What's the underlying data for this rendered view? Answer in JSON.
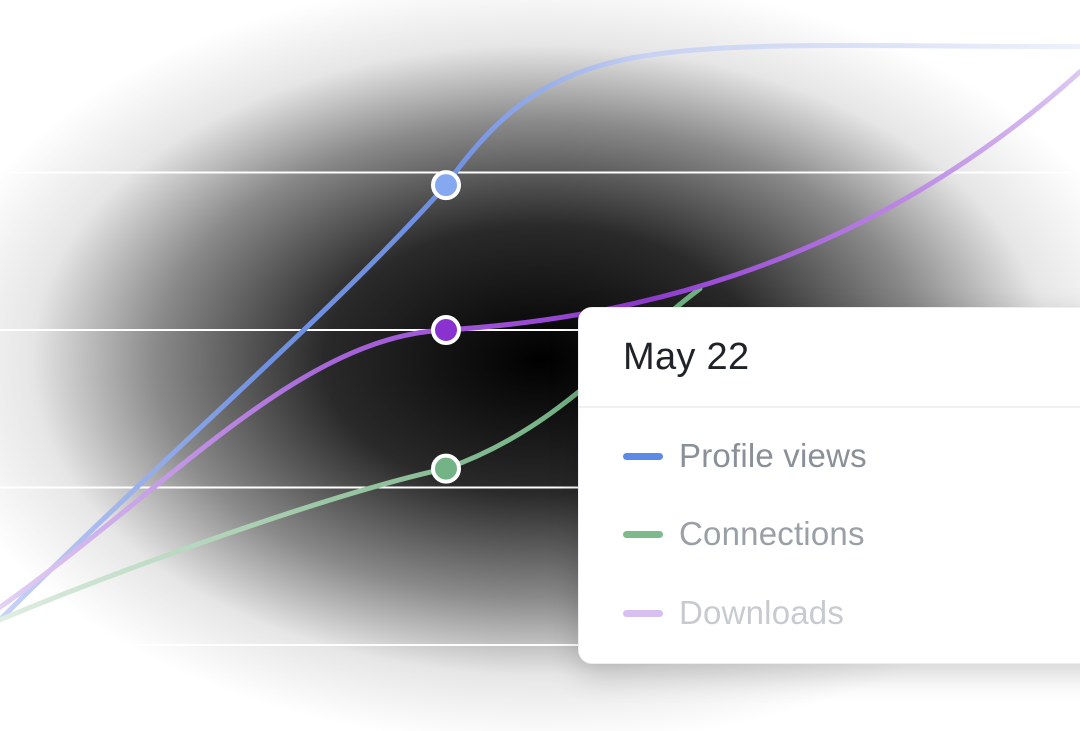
{
  "chart_data": {
    "type": "line",
    "x": [
      "",
      "May 22",
      ""
    ],
    "ylim": [
      0,
      100
    ],
    "grid": true,
    "series": [
      {
        "name": "Profile views",
        "color": "#5b8ae8",
        "values": [
          4,
          73,
          95
        ]
      },
      {
        "name": "Connections",
        "color": "#7dbb8e",
        "values": [
          4,
          28,
          70
        ]
      },
      {
        "name": "Downloads",
        "color": "#9a4fd8",
        "values": [
          6,
          50,
          91
        ]
      }
    ]
  },
  "tooltip": {
    "date": "May 22",
    "items": [
      {
        "label": "Profile views",
        "swatch_color": "#5b8ae8",
        "text_color": "#8a9097"
      },
      {
        "label": "Connections",
        "swatch_color": "#7dbb8e",
        "text_color": "#9aa0a6"
      },
      {
        "label": "Downloads",
        "swatch_color": "#d7bff2",
        "text_color": "#c7cbd0"
      }
    ]
  }
}
